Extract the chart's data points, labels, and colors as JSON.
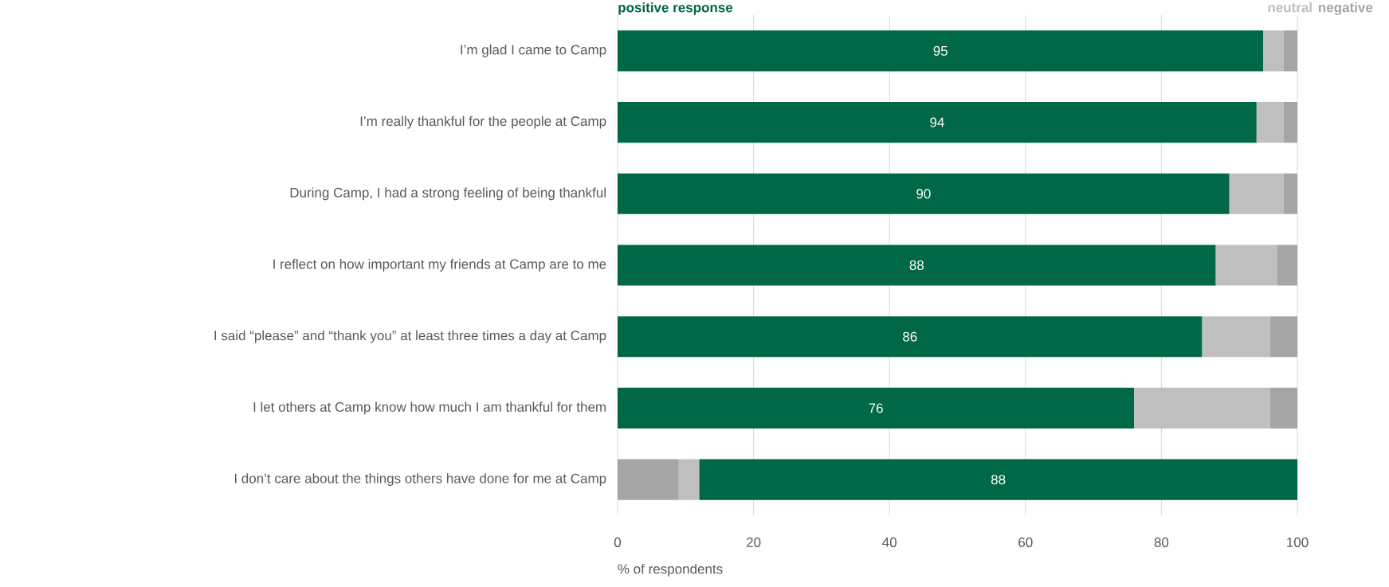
{
  "chart_data": {
    "type": "bar",
    "orientation": "horizontal",
    "xlabel": "% of respondents",
    "categories": [
      "I’m glad I came to Camp",
      "I’m really thankful for the people at Camp",
      "During Camp, I had a strong feeling of being thankful",
      "I reflect on how important my friends at Camp are to me",
      "I said “please” and “thank you” at least three times a day at Camp",
      "I let others at Camp know how much I am thankful for them",
      "I don’t care about the things others have done for me at Camp"
    ],
    "xlim": [
      0,
      100
    ],
    "xticks": [
      0,
      20,
      40,
      60,
      80,
      100
    ],
    "grid": "x",
    "legend": "top",
    "series": [
      {
        "name": "positive response",
        "color": "#006747",
        "values": [
          95,
          94,
          90,
          88,
          86,
          76,
          88
        ],
        "base": [
          0,
          0,
          0,
          0,
          0,
          0,
          12
        ],
        "value_labels": [
          "95",
          "94",
          "90",
          "88",
          "86",
          "76",
          "88"
        ]
      },
      {
        "name": "neutral",
        "color": "#bfbfbf",
        "values": [
          3,
          4,
          8,
          9,
          10,
          20,
          3
        ],
        "base": [
          95,
          94,
          90,
          88,
          86,
          76,
          9
        ]
      },
      {
        "name": "negative",
        "color": "#a5a5a5",
        "values": [
          2,
          2,
          2,
          3,
          4,
          4,
          9
        ],
        "base": [
          98,
          98,
          98,
          97,
          96,
          96,
          0
        ]
      }
    ]
  }
}
